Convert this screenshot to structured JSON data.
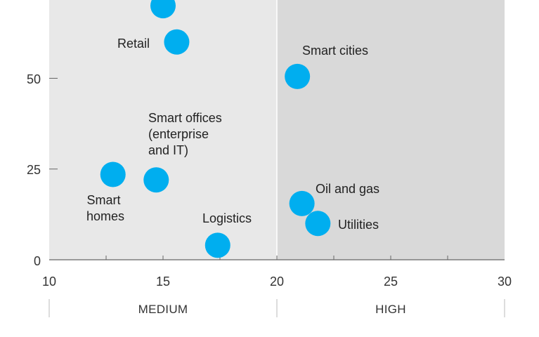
{
  "chart_data": {
    "type": "scatter",
    "title": "",
    "xlabel": "",
    "ylabel": "",
    "xlim": [
      10,
      30
    ],
    "ylim": [
      0,
      72
    ],
    "x_ticks": [
      "10",
      "15",
      "20",
      "25",
      "30"
    ],
    "x_tick_values": [
      10,
      15,
      20,
      25,
      30
    ],
    "y_ticks": [
      "0",
      "25",
      "50"
    ],
    "y_tick_values": [
      0,
      25,
      50
    ],
    "grid": false,
    "point_color": "#00aeef",
    "regions": [
      {
        "label": "MEDIUM",
        "from": 10,
        "to": 20,
        "color": "#e8e8e8"
      },
      {
        "label": "HIGH",
        "from": 20,
        "to": 30,
        "color": "#d9d9d9"
      }
    ],
    "points": [
      {
        "label": "",
        "x": 15.0,
        "y": 70
      },
      {
        "label": "Retail",
        "x": 15.6,
        "y": 60
      },
      {
        "label": "Smart cities",
        "x": 20.9,
        "y": 50.5
      },
      {
        "label": "Smart offices (enterprise and IT)",
        "x": 14.7,
        "y": 22
      },
      {
        "label": "Smart homes",
        "x": 12.8,
        "y": 23.5
      },
      {
        "label": "Logistics",
        "x": 17.4,
        "y": 4
      },
      {
        "label": "Oil and gas",
        "x": 21.1,
        "y": 15.5
      },
      {
        "label": "Utilities",
        "x": 21.8,
        "y": 10
      }
    ]
  }
}
